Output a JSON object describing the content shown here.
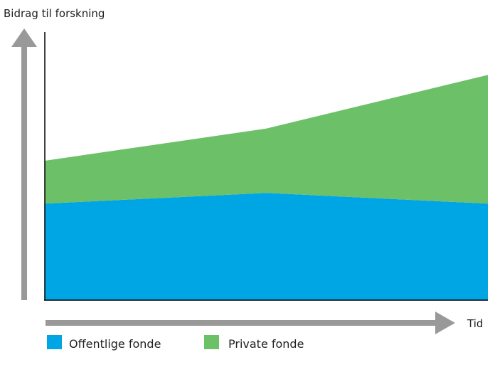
{
  "chart_data": {
    "type": "area",
    "stacked": true,
    "ylabel": "Bidrag til forskning",
    "xlabel": "Tid",
    "x": [
      0,
      1,
      2
    ],
    "ylim": [
      0,
      100
    ],
    "grid": false,
    "axis_ticks": false,
    "legend_position": "bottom-left",
    "series": [
      {
        "name": "Offentlige fonde",
        "color": "#00a6e4",
        "values": [
          36,
          40,
          36
        ]
      },
      {
        "name": "Private fonde",
        "color": "#6cc067",
        "values": [
          16,
          24,
          48
        ]
      }
    ],
    "arrow_color": "#999999"
  }
}
